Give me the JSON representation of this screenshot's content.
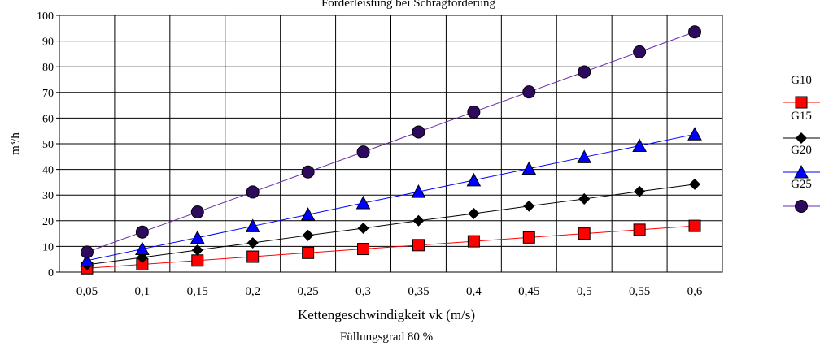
{
  "chart_data": {
    "type": "line",
    "title": "Förderleistung bei Schrägförderung",
    "xlabel": "Kettengeschwindigkeit vk (m/s)",
    "subtitle": "Füllungsgrad 80 %",
    "ylabel": "m³/h",
    "categories": [
      "0,05",
      "0,1",
      "0,15",
      "0,2",
      "0,25",
      "0,3",
      "0,35",
      "0,4",
      "0,45",
      "0,5",
      "0,55",
      "0,6"
    ],
    "ylim": [
      0,
      100
    ],
    "yticks": [
      "0",
      "10",
      "20",
      "30",
      "40",
      "50",
      "60",
      "70",
      "80",
      "90",
      "100"
    ],
    "grid": true,
    "legend_position": "right",
    "series": [
      {
        "name": "G10",
        "color": "#ff0000",
        "line_color": "#ff0000",
        "marker": "square",
        "values": [
          1.5,
          3,
          4.5,
          6,
          7.5,
          9,
          10.5,
          12,
          13.5,
          15,
          16.5,
          18
        ]
      },
      {
        "name": "G15",
        "color": "#000000",
        "line_color": "#000000",
        "marker": "diamond",
        "values": [
          2.9,
          5.7,
          8.6,
          11.4,
          14.3,
          17.1,
          20,
          22.8,
          25.7,
          28.5,
          31.4,
          34.2
        ]
      },
      {
        "name": "G20",
        "color": "#0000ff",
        "line_color": "#0000ff",
        "marker": "triangle",
        "values": [
          4.5,
          9,
          13.4,
          17.9,
          22.4,
          26.9,
          31.3,
          35.8,
          40.3,
          44.8,
          49.2,
          53.7
        ]
      },
      {
        "name": "G25",
        "color": "#2e0a5e",
        "line_color": "#6a2aa8",
        "marker": "circle",
        "values": [
          7.8,
          15.6,
          23.4,
          31.2,
          39,
          46.8,
          54.6,
          62.4,
          70.2,
          78,
          85.8,
          93.6
        ]
      }
    ]
  }
}
